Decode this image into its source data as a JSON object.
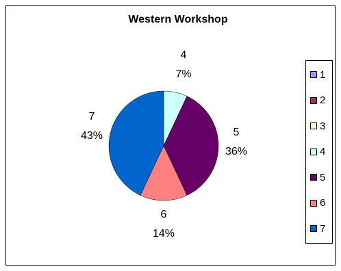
{
  "chart_data": {
    "type": "pie",
    "title": "Western Workshop",
    "categories": [
      "1",
      "2",
      "3",
      "4",
      "5",
      "6",
      "7"
    ],
    "values": [
      0,
      0,
      0,
      7,
      36,
      14,
      43
    ],
    "slice_labels": [
      {
        "category": "4",
        "percent": "7%"
      },
      {
        "category": "5",
        "percent": "36%"
      },
      {
        "category": "6",
        "percent": "14%"
      },
      {
        "category": "7",
        "percent": "43%"
      }
    ],
    "colors": [
      "#9999ff",
      "#993366",
      "#ffffcc",
      "#ccffff",
      "#660066",
      "#ff8080",
      "#0066cc"
    ],
    "legend_position": "right"
  }
}
